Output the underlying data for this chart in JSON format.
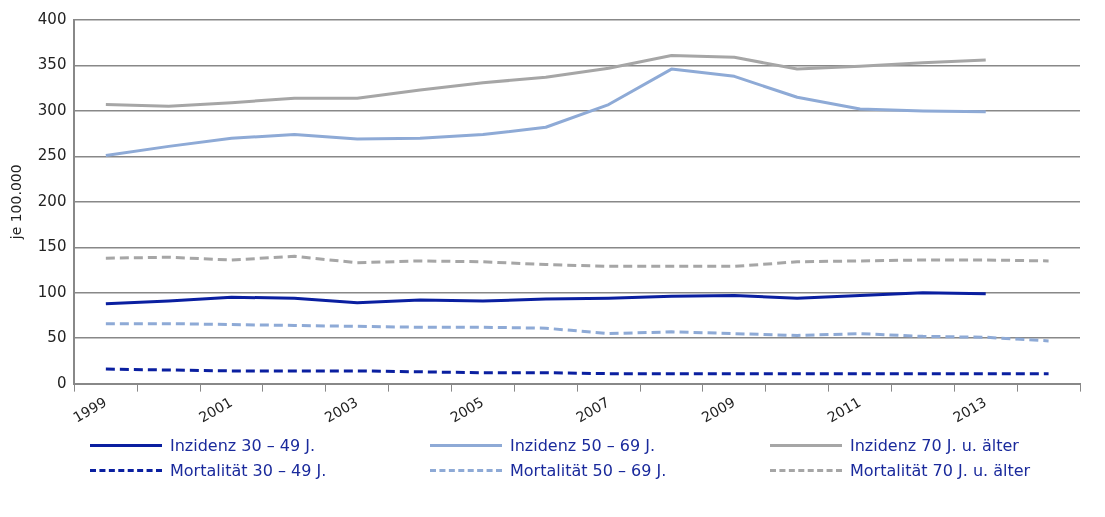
{
  "chart_data": {
    "type": "line",
    "ylabel": "je 100.000",
    "categories": [
      "1999",
      null,
      "2001",
      null,
      "2003",
      null,
      "2005",
      null,
      "2007",
      null,
      "2009",
      null,
      "2011",
      null,
      "2013",
      null
    ],
    "series": [
      {
        "name": "Inzidenz 30 – 49 J.",
        "color": "#0a1fa0",
        "line_style": "solid",
        "values": [
          88,
          91,
          95,
          94,
          89,
          92,
          91,
          93,
          94,
          96,
          97,
          94,
          97,
          100,
          99,
          null
        ]
      },
      {
        "name": "Inzidenz 50 – 69 J.",
        "color": "#8eaad6",
        "line_style": "solid",
        "values": [
          251,
          261,
          270,
          274,
          269,
          270,
          274,
          282,
          307,
          346,
          338,
          315,
          302,
          300,
          299,
          null
        ]
      },
      {
        "name": "Inzidenz 70 J. u. älter",
        "color": "#a6a6a6",
        "line_style": "solid",
        "values": [
          307,
          305,
          309,
          314,
          314,
          323,
          331,
          337,
          347,
          361,
          359,
          346,
          349,
          353,
          356,
          null
        ]
      },
      {
        "name": "Mortalität 30 – 49 J.",
        "color": "#0a1fa0",
        "line_style": "dashed",
        "values": [
          16,
          15,
          14,
          14,
          14,
          13,
          12,
          12,
          11,
          11,
          11,
          11,
          11,
          11,
          11,
          11
        ]
      },
      {
        "name": "Mortalität 50 – 69 J.",
        "color": "#8eaad6",
        "line_style": "dashed",
        "values": [
          66,
          66,
          65,
          64,
          63,
          62,
          62,
          61,
          55,
          57,
          55,
          53,
          55,
          52,
          51,
          47
        ]
      },
      {
        "name": "Mortalität 70 J. u. älter",
        "color": "#a6a6a6",
        "line_style": "dashed",
        "values": [
          138,
          139,
          136,
          140,
          133,
          135,
          134,
          131,
          129,
          129,
          129,
          134,
          135,
          136,
          136,
          135
        ]
      }
    ],
    "ylim": [
      0,
      400
    ],
    "yticks": [
      0,
      50,
      100,
      150,
      200,
      250,
      300,
      350,
      400
    ],
    "grid": "y",
    "legend": "bottom",
    "marker": "none"
  }
}
